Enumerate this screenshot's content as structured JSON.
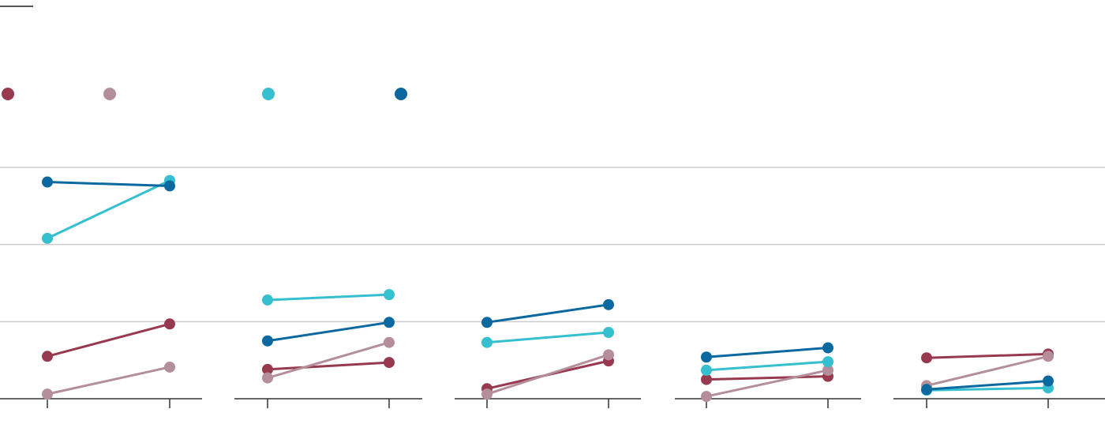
{
  "chart_data": [
    {
      "type": "line",
      "categories": [
        null,
        null
      ],
      "ylim": [
        0,
        3
      ],
      "yticks": [
        0,
        1,
        2,
        3
      ],
      "grid": true,
      "series": [
        {
          "color": "#973a4f",
          "values": [
            0.55,
            0.97
          ]
        },
        {
          "color": "#b58e9b",
          "values": [
            0.06,
            0.41
          ]
        },
        {
          "color": "#36bfce",
          "values": [
            2.08,
            2.83
          ]
        },
        {
          "color": "#0b69a0",
          "values": [
            2.81,
            2.76
          ]
        }
      ]
    },
    {
      "type": "line",
      "categories": [
        null,
        null
      ],
      "ylim": [
        0,
        3
      ],
      "yticks": [
        0,
        1,
        2,
        3
      ],
      "grid": true,
      "series": [
        {
          "color": "#973a4f",
          "values": [
            0.38,
            0.47
          ]
        },
        {
          "color": "#b58e9b",
          "values": [
            0.27,
            0.73
          ]
        },
        {
          "color": "#36bfce",
          "values": [
            1.28,
            1.35
          ]
        },
        {
          "color": "#0b69a0",
          "values": [
            0.75,
            0.99
          ]
        }
      ]
    },
    {
      "type": "line",
      "categories": [
        null,
        null
      ],
      "ylim": [
        0,
        3
      ],
      "yticks": [
        0,
        1,
        2,
        3
      ],
      "grid": true,
      "series": [
        {
          "color": "#973a4f",
          "values": [
            0.13,
            0.49
          ]
        },
        {
          "color": "#b58e9b",
          "values": [
            0.06,
            0.57
          ]
        },
        {
          "color": "#36bfce",
          "values": [
            0.73,
            0.86
          ]
        },
        {
          "color": "#0b69a0",
          "values": [
            0.99,
            1.22
          ]
        }
      ]
    },
    {
      "type": "line",
      "categories": [
        null,
        null
      ],
      "ylim": [
        0,
        3
      ],
      "yticks": [
        0,
        1,
        2,
        3
      ],
      "grid": true,
      "series": [
        {
          "color": "#973a4f",
          "values": [
            0.25,
            0.29
          ]
        },
        {
          "color": "#b58e9b",
          "values": [
            0.03,
            0.37
          ]
        },
        {
          "color": "#36bfce",
          "values": [
            0.37,
            0.48
          ]
        },
        {
          "color": "#0b69a0",
          "values": [
            0.54,
            0.66
          ]
        }
      ]
    },
    {
      "type": "line",
      "categories": [
        null,
        null
      ],
      "ylim": [
        0,
        3
      ],
      "yticks": [
        0,
        1,
        2,
        3
      ],
      "grid": true,
      "series": [
        {
          "color": "#973a4f",
          "values": [
            0.53,
            0.58
          ]
        },
        {
          "color": "#b58e9b",
          "values": [
            0.17,
            0.55
          ]
        },
        {
          "color": "#36bfce",
          "values": [
            0.11,
            0.14
          ]
        },
        {
          "color": "#0b69a0",
          "values": [
            0.12,
            0.23
          ]
        }
      ]
    }
  ]
}
